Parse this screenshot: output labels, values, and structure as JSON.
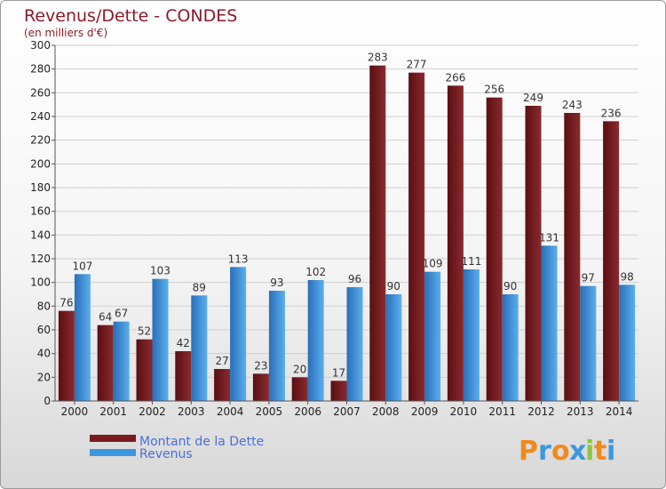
{
  "chart_data": {
    "type": "bar",
    "title": "Revenus/Dette - CONDES",
    "subtitle": "(en milliers d'€)",
    "categories": [
      "2000",
      "2001",
      "2002",
      "2003",
      "2004",
      "2005",
      "2006",
      "2007",
      "2008",
      "2009",
      "2010",
      "2011",
      "2012",
      "2013",
      "2014"
    ],
    "series": [
      {
        "name": "Montant de la Dette",
        "color": "#7a1a1e",
        "values": [
          76,
          64,
          52,
          42,
          27,
          23,
          20,
          17,
          283,
          277,
          266,
          256,
          249,
          243,
          236
        ]
      },
      {
        "name": "Revenus",
        "color": "#3d97df",
        "values": [
          107,
          67,
          103,
          89,
          113,
          93,
          102,
          96,
          90,
          109,
          111,
          90,
          131,
          97,
          98
        ]
      }
    ],
    "ylim": [
      0,
      300
    ],
    "yticks": [
      0,
      20,
      40,
      60,
      80,
      100,
      120,
      140,
      160,
      180,
      200,
      220,
      240,
      260,
      280,
      300
    ],
    "grid": true,
    "legend_position": "bottom-left"
  },
  "logo": {
    "letters": [
      "P",
      "r",
      "o",
      "x",
      "i",
      "t",
      "i"
    ],
    "colors": [
      "#f08a1c",
      "#3d97df",
      "#f08a1c",
      "#3d97df",
      "#8cc63f",
      "#f08a1c",
      "#3d97df"
    ]
  }
}
